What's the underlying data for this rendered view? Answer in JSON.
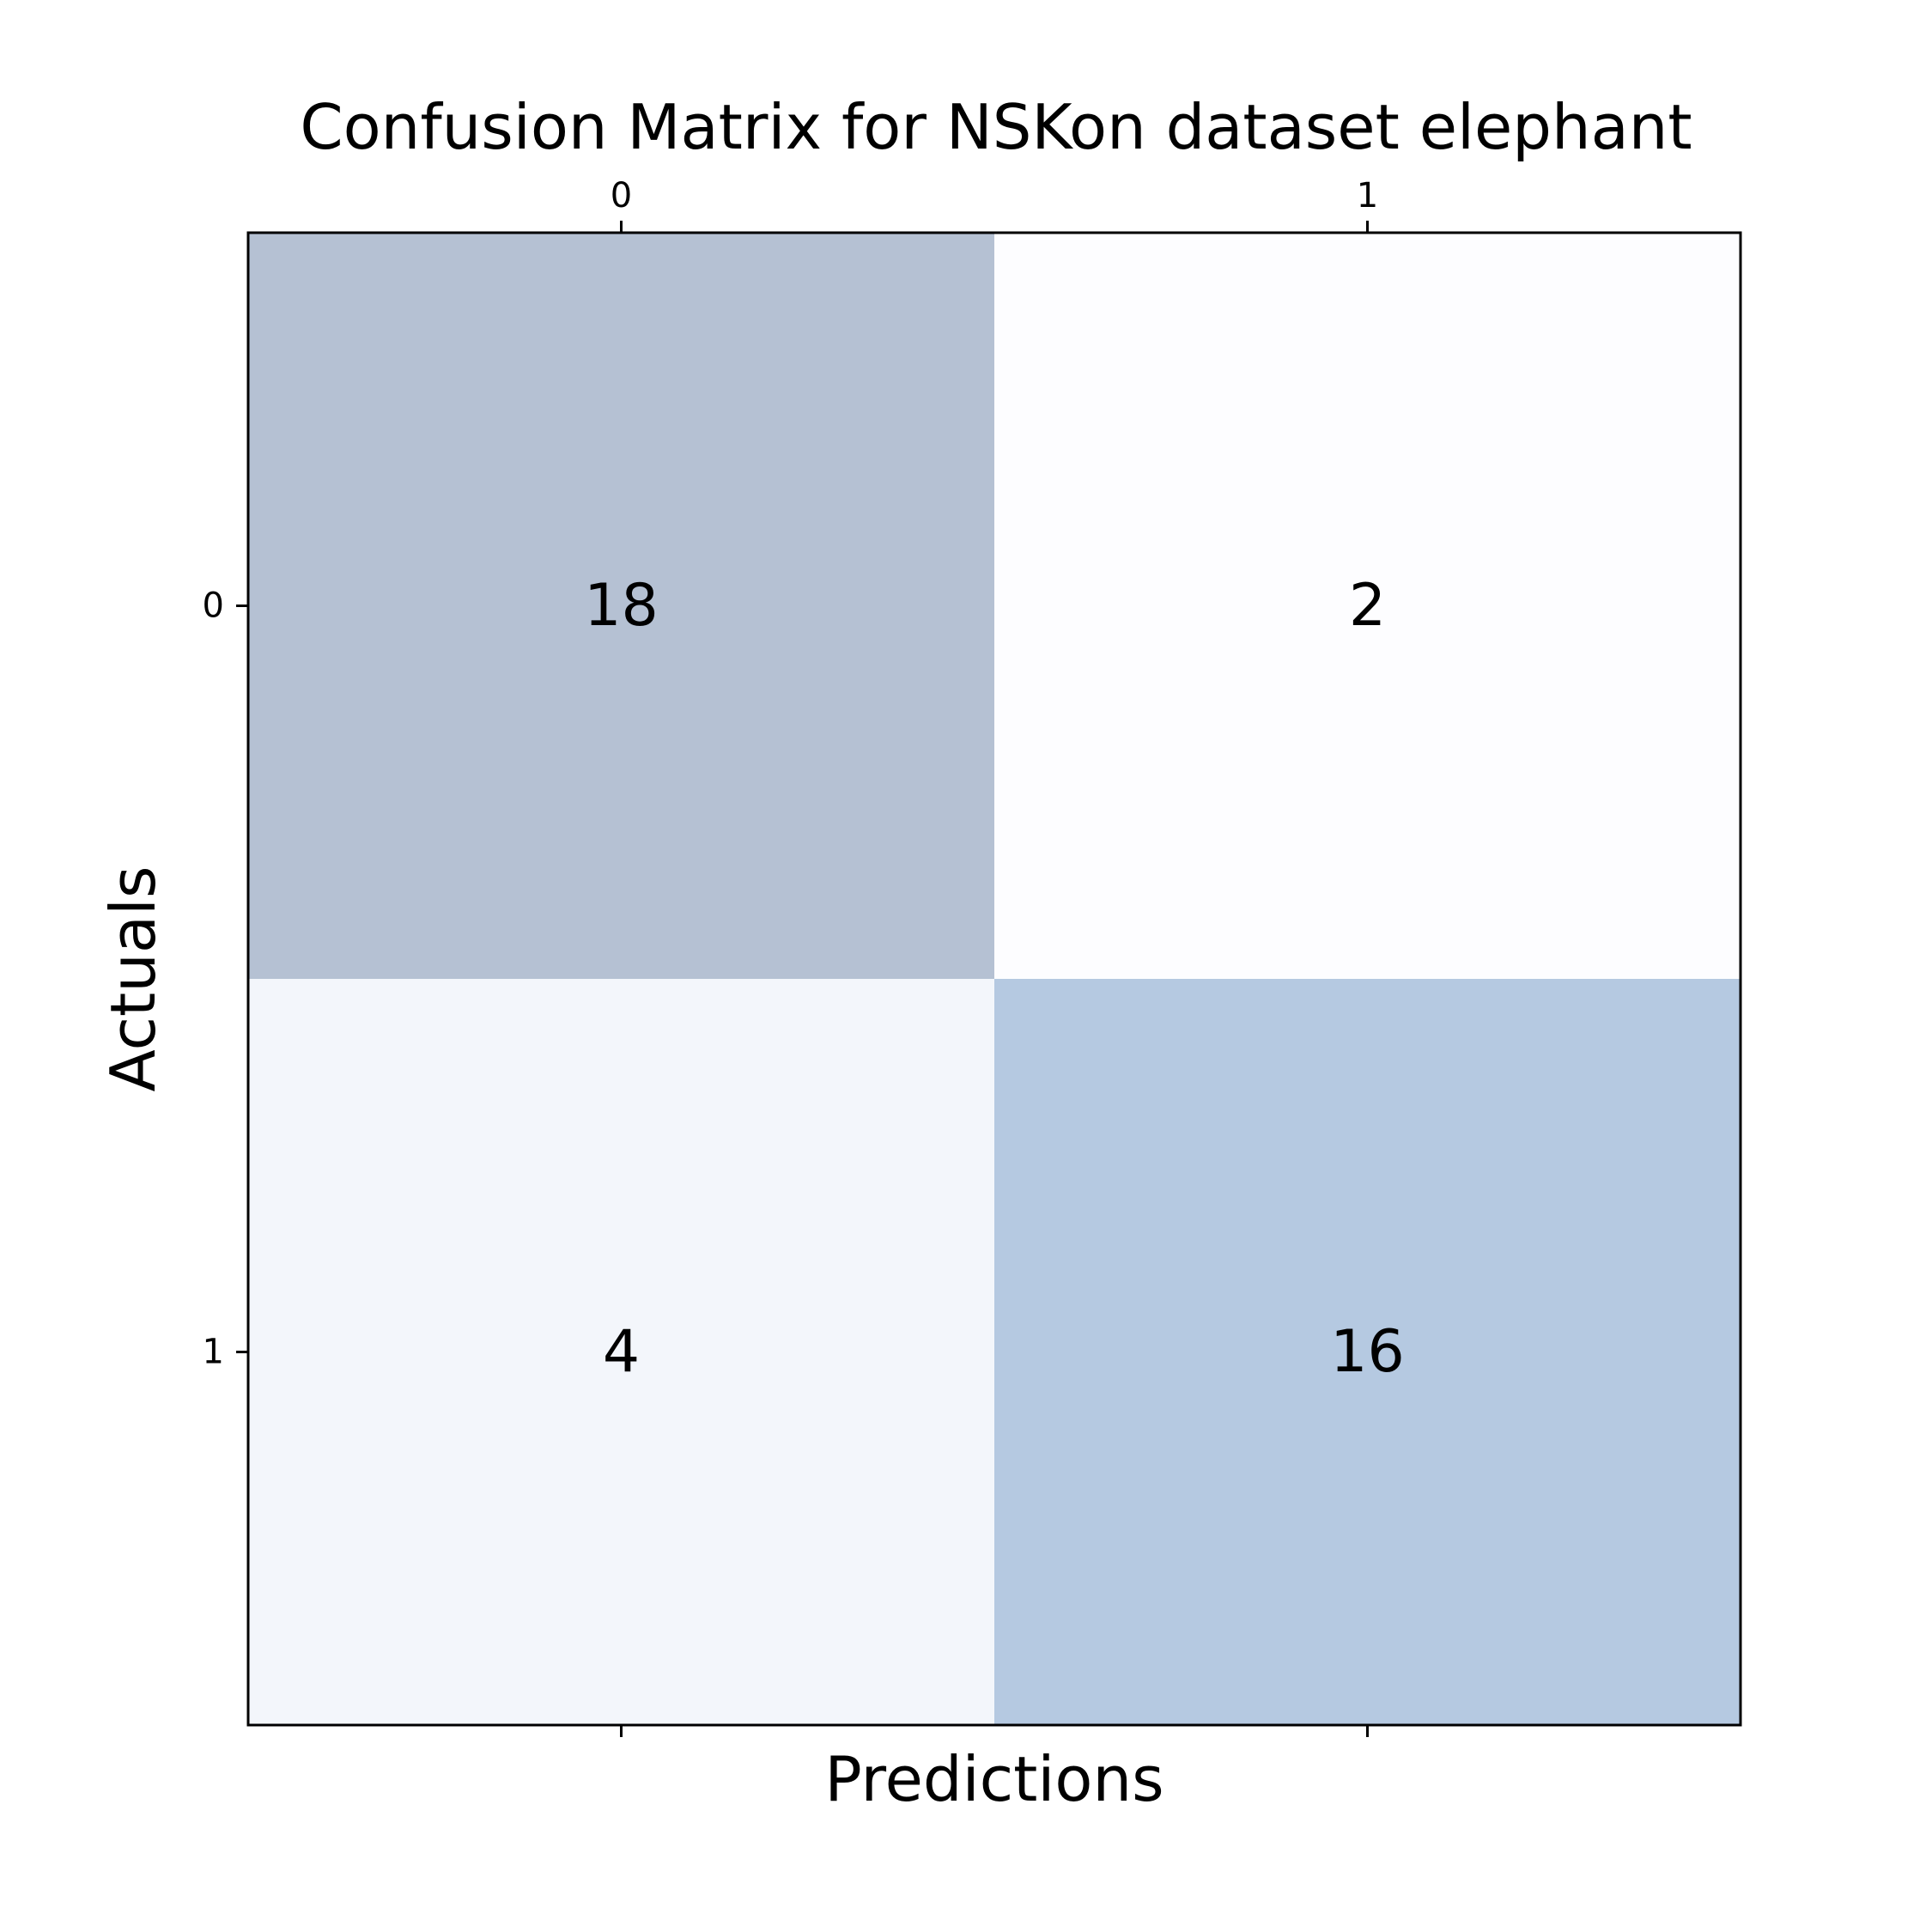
{
  "chart_data": {
    "type": "heatmap",
    "title": "Confusion Matrix for NSKon dataset elephant",
    "xlabel": "Predictions",
    "ylabel": "Actuals",
    "x_categories": [
      "0",
      "1"
    ],
    "y_categories": [
      "0",
      "1"
    ],
    "values": [
      [
        18,
        2
      ],
      [
        4,
        16
      ]
    ],
    "cell_colors": [
      [
        "#b5c1d3",
        "#fdfdff"
      ],
      [
        "#f3f6fb",
        "#b5c9e1"
      ]
    ],
    "x_ticks_position": "top-and-bottom",
    "grid": false
  }
}
